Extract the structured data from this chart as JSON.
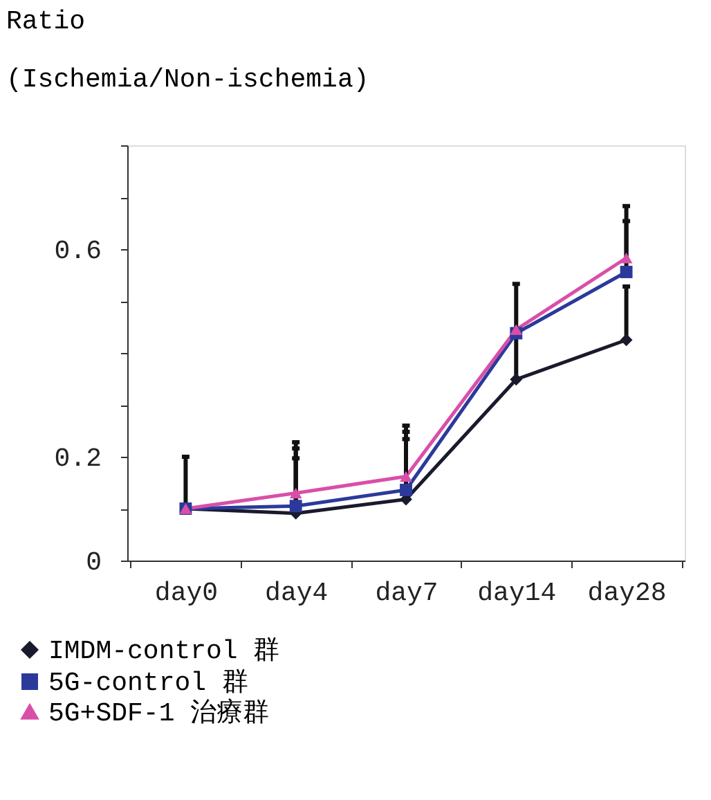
{
  "chart_data": {
    "type": "line",
    "ylabel": "Ratio\n(Ischemia/Non-ischemia)",
    "categories": [
      "day0",
      "day4",
      "day7",
      "day14",
      "day28"
    ],
    "series": [
      {
        "name": "IMDM-control 群",
        "color": "#1a1a2e",
        "marker": "diamond",
        "values": [
          0.1,
          0.091,
          0.118,
          0.349,
          0.425
        ],
        "errors": [
          [
            0.1,
            0.2
          ],
          [
            0.091,
            0.197
          ],
          [
            0.118,
            0.234
          ],
          [
            0.349,
            0.533
          ],
          [
            0.425,
            0.528
          ]
        ]
      },
      {
        "name": "5G-control 群",
        "color": "#2b3a9a",
        "marker": "square",
        "values": [
          0.1,
          0.105,
          0.136,
          0.438,
          0.556
        ],
        "errors": [
          null,
          [
            0.105,
            0.216
          ],
          [
            0.136,
            0.248
          ],
          null,
          [
            0.556,
            0.654
          ]
        ]
      },
      {
        "name": "5G+SDF-1 治療群",
        "color": "#d94fa8",
        "marker": "triangle",
        "values": [
          0.1,
          0.13,
          0.162,
          0.445,
          0.583
        ],
        "errors": [
          null,
          [
            0.13,
            0.228
          ],
          [
            0.162,
            0.26
          ],
          null,
          [
            0.583,
            0.683
          ]
        ]
      }
    ],
    "ylim": [
      0,
      0.8
    ],
    "yticks": [
      0,
      {
        "value": 0.1,
        "label": null
      },
      0.2,
      {
        "value": 0.3,
        "label": null
      },
      {
        "value": 0.4,
        "label": null
      },
      {
        "value": 0.5,
        "label": null
      },
      0.6,
      {
        "value": 0.7,
        "label": null
      },
      {
        "value": 0.8,
        "label": null
      }
    ],
    "grid": false,
    "legend": "bottom"
  }
}
